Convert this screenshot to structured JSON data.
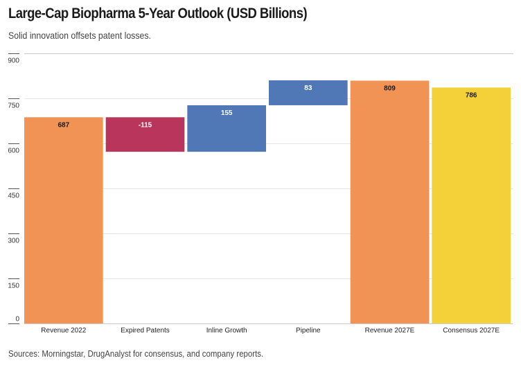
{
  "chart_data": {
    "type": "bar",
    "subtype": "waterfall",
    "title": "Large-Cap Biopharma 5-Year Outlook (USD Billions)",
    "subtitle": "Solid innovation offsets patent losses.",
    "source": "Sources: Morningstar, DrugAnalyst for consensus, and company reports.",
    "xlabel": "",
    "ylabel": "",
    "ylim": [
      0,
      900
    ],
    "yticks": [
      0,
      150,
      300,
      450,
      600,
      750,
      900
    ],
    "grid": true,
    "legend": "none",
    "categories": [
      "Revenue 2022",
      "Expired Patents",
      "Inline Growth",
      "Pipeline",
      "Revenue 2027E",
      "Consensus 2027E"
    ],
    "bars": [
      {
        "label": "Revenue 2022",
        "value": 687,
        "display": "687",
        "start": 0,
        "end": 687,
        "kind": "total",
        "color": "#F0904E",
        "label_color": "#1a1a1a"
      },
      {
        "label": "Expired Patents",
        "value": -115,
        "display": "-115",
        "start": 687,
        "end": 572,
        "kind": "decrease",
        "color": "#B82E57",
        "label_color": "#ffffff"
      },
      {
        "label": "Inline Growth",
        "value": 155,
        "display": "155",
        "start": 572,
        "end": 727,
        "kind": "increase",
        "color": "#4A74B4",
        "label_color": "#ffffff"
      },
      {
        "label": "Pipeline",
        "value": 83,
        "display": "83",
        "start": 727,
        "end": 810,
        "kind": "increase",
        "color": "#4A74B4",
        "label_color": "#ffffff"
      },
      {
        "label": "Revenue 2027E",
        "value": 809,
        "display": "809",
        "start": 0,
        "end": 809,
        "kind": "total",
        "color": "#F0904E",
        "label_color": "#1a1a1a"
      },
      {
        "label": "Consensus 2027E",
        "value": 786,
        "display": "786",
        "start": 0,
        "end": 786,
        "kind": "total",
        "color": "#F5CF33",
        "label_color": "#1a1a1a"
      }
    ]
  }
}
